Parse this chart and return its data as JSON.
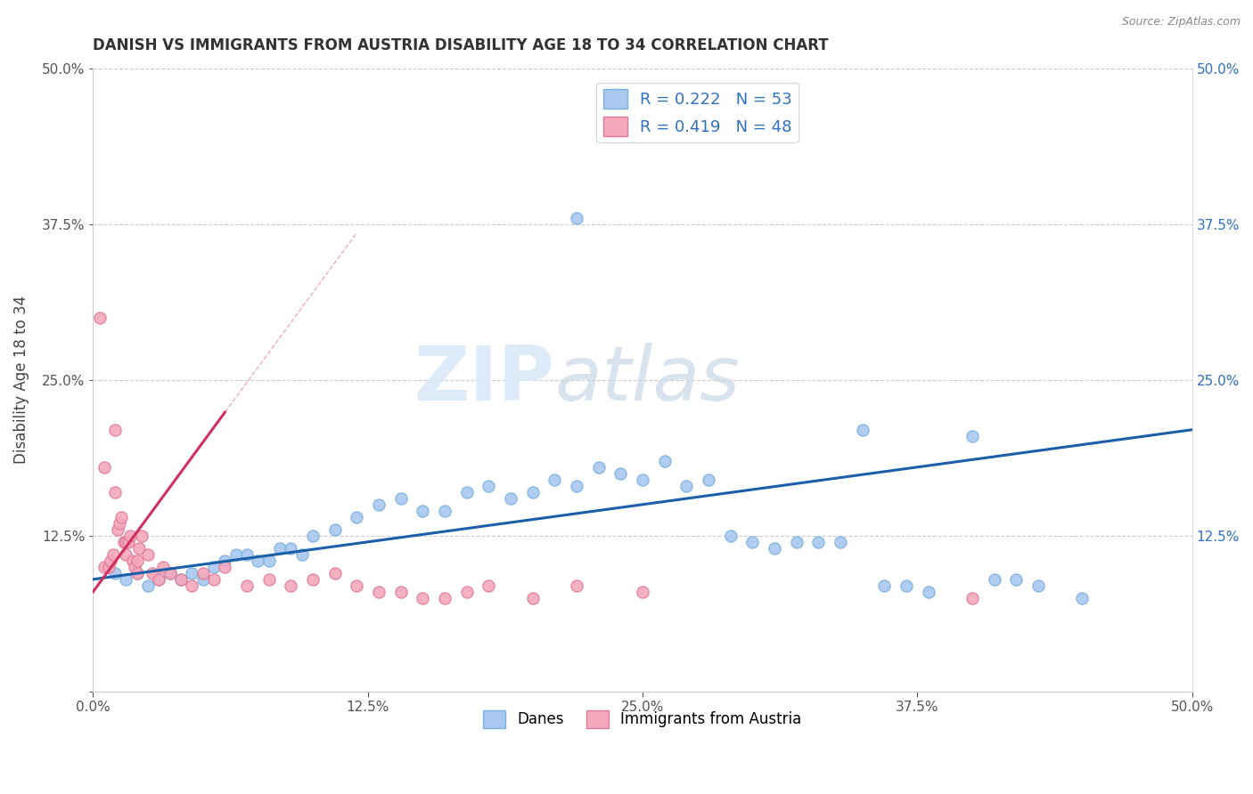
{
  "title": "DANISH VS IMMIGRANTS FROM AUSTRIA DISABILITY AGE 18 TO 34 CORRELATION CHART",
  "source": "Source: ZipAtlas.com",
  "ylabel": "Disability Age 18 to 34",
  "xlim": [
    0.0,
    50.0
  ],
  "ylim": [
    0.0,
    50.0
  ],
  "xticks": [
    0.0,
    12.5,
    25.0,
    37.5,
    50.0
  ],
  "yticks": [
    0.0,
    12.5,
    25.0,
    37.5,
    50.0
  ],
  "xtick_labels": [
    "0.0%",
    "12.5%",
    "25.0%",
    "37.5%",
    "50.0%"
  ],
  "ytick_labels": [
    "",
    "12.5%",
    "25.0%",
    "37.5%",
    "50.0%"
  ],
  "danes_color": "#a8c8f0",
  "danes_edge_color": "#7ab0de",
  "austria_color": "#f4a8bc",
  "austria_edge_color": "#e07898",
  "danes_R": 0.222,
  "danes_N": 53,
  "austria_R": 0.419,
  "austria_N": 48,
  "legend_label_danes": "Danes",
  "legend_label_austria": "Immigrants from Austria",
  "danes_line_color": "#1a5fa8",
  "austria_line_color": "#d03060",
  "danes_x": [
    1.0,
    1.5,
    2.0,
    2.5,
    3.0,
    3.5,
    4.0,
    4.5,
    5.0,
    5.5,
    6.0,
    6.5,
    7.0,
    7.5,
    8.0,
    8.5,
    9.0,
    9.5,
    10.0,
    11.0,
    12.0,
    13.0,
    14.0,
    15.0,
    16.0,
    17.0,
    18.0,
    19.0,
    20.0,
    21.0,
    22.0,
    23.0,
    24.0,
    25.0,
    26.0,
    27.0,
    28.0,
    29.0,
    30.0,
    31.0,
    32.0,
    33.0,
    34.0,
    35.0,
    36.0,
    37.0,
    38.0,
    40.0,
    41.0,
    42.0,
    43.0,
    45.0,
    22.0
  ],
  "danes_y": [
    9.5,
    9.0,
    9.5,
    8.5,
    9.0,
    9.5,
    9.0,
    9.5,
    9.0,
    10.0,
    10.5,
    11.0,
    11.0,
    10.5,
    10.5,
    11.5,
    11.5,
    11.0,
    12.5,
    13.0,
    14.0,
    15.0,
    15.5,
    14.5,
    14.5,
    16.0,
    16.5,
    15.5,
    16.0,
    17.0,
    16.5,
    18.0,
    17.5,
    17.0,
    18.5,
    16.5,
    17.0,
    12.5,
    12.0,
    11.5,
    12.0,
    12.0,
    12.0,
    21.0,
    8.5,
    8.5,
    8.0,
    20.5,
    9.0,
    9.0,
    8.5,
    7.5,
    38.0
  ],
  "austria_x": [
    0.3,
    0.5,
    0.5,
    0.7,
    0.8,
    0.9,
    1.0,
    1.0,
    1.1,
    1.2,
    1.3,
    1.4,
    1.5,
    1.5,
    1.6,
    1.7,
    1.8,
    1.9,
    2.0,
    2.0,
    2.1,
    2.2,
    2.5,
    2.7,
    3.0,
    3.2,
    3.5,
    4.0,
    4.5,
    5.0,
    5.5,
    6.0,
    7.0,
    8.0,
    9.0,
    10.0,
    11.0,
    12.0,
    13.0,
    14.0,
    15.0,
    16.0,
    17.0,
    18.0,
    20.0,
    22.0,
    25.0,
    40.0
  ],
  "austria_y": [
    30.0,
    18.0,
    10.0,
    10.0,
    10.5,
    11.0,
    16.0,
    21.0,
    13.0,
    13.5,
    14.0,
    12.0,
    12.0,
    11.0,
    12.0,
    12.5,
    10.5,
    10.0,
    10.5,
    9.5,
    11.5,
    12.5,
    11.0,
    9.5,
    9.0,
    10.0,
    9.5,
    9.0,
    8.5,
    9.5,
    9.0,
    10.0,
    8.5,
    9.0,
    8.5,
    9.0,
    9.5,
    8.5,
    8.0,
    8.0,
    7.5,
    7.5,
    8.0,
    8.5,
    7.5,
    8.5,
    8.0,
    7.5
  ],
  "watermark_zip": "ZIP",
  "watermark_atlas": "atlas"
}
